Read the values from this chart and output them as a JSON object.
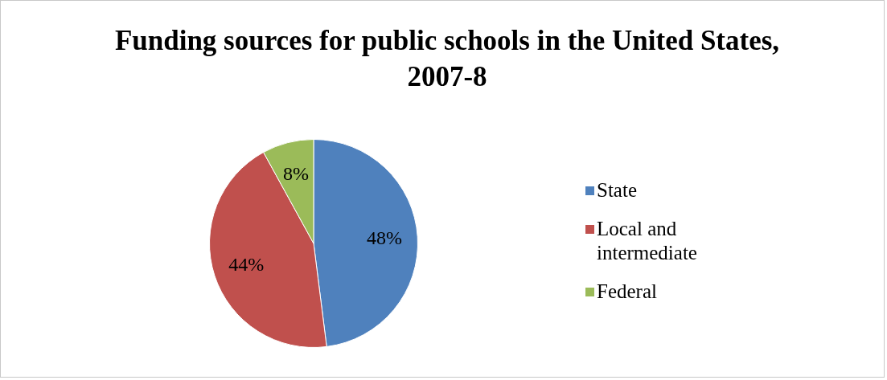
{
  "chart_data": {
    "type": "pie",
    "title": "Funding sources for public schools in the United States, 2007-8",
    "categories": [
      "State",
      "Local and intermediate",
      "Federal"
    ],
    "values": [
      48,
      44,
      8
    ],
    "colors": [
      "#4f81bd",
      "#c0504d",
      "#9bbb59"
    ],
    "value_labels": [
      "48%",
      "44%",
      "8%"
    ],
    "legend": "right"
  }
}
